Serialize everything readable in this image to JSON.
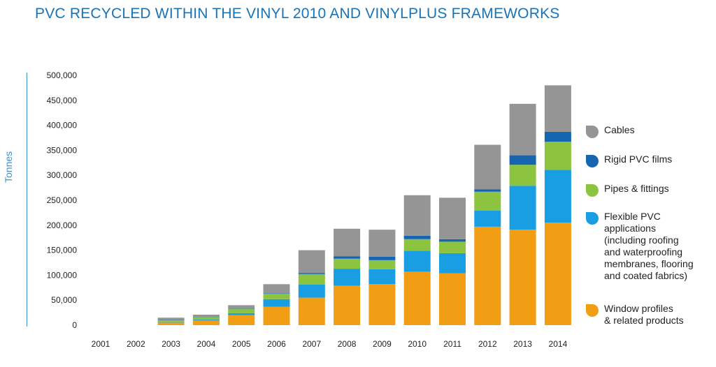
{
  "title": "PVC RECYCLED WITHIN THE VINYL 2010 AND VINYLPLUS FRAMEWORKS",
  "chart_data": {
    "type": "bar",
    "stacked": true,
    "title": "PVC RECYCLED WITHIN THE VINYL 2010 AND VINYLPLUS FRAMEWORKS",
    "xlabel": "",
    "ylabel": "Tonnes",
    "ylim": [
      0,
      500000
    ],
    "yticks": [
      "0",
      "50,000",
      "100,000",
      "150,000",
      "200,000",
      "250,000",
      "300,000",
      "350,000",
      "400,000",
      "450,000",
      "500,000"
    ],
    "grid": false,
    "legend_position": "right",
    "categories": [
      "2001",
      "2002",
      "2003",
      "2004",
      "2005",
      "2006",
      "2007",
      "2008",
      "2009",
      "2010",
      "2011",
      "2012",
      "2013",
      "2014"
    ],
    "series": [
      {
        "name": "Window profiles\n& related products",
        "color": "#f29e14",
        "values": [
          0,
          0,
          5000,
          9000,
          20000,
          37000,
          55000,
          79000,
          82000,
          107000,
          104000,
          197000,
          191000,
          205000
        ]
      },
      {
        "name": "Flexible PVC\napplications\n(including roofing\nand waterproofing\nmembranes, flooring\nand coated fabrics)",
        "color": "#1a9ee3",
        "values": [
          0,
          0,
          1000,
          2000,
          4000,
          15000,
          26000,
          34000,
          30000,
          42000,
          40000,
          32000,
          88000,
          106000
        ]
      },
      {
        "name": "Pipes & fittings",
        "color": "#8dc43f",
        "values": [
          0,
          0,
          4000,
          5000,
          9000,
          11000,
          21000,
          20000,
          18000,
          23000,
          23000,
          38000,
          42000,
          56000
        ]
      },
      {
        "name": "Rigid PVC films",
        "color": "#1565b0",
        "values": [
          0,
          0,
          500,
          500,
          1000,
          1000,
          2000,
          5000,
          7000,
          7000,
          5000,
          5000,
          19000,
          20000
        ]
      },
      {
        "name": "Cables",
        "color": "#959595",
        "values": [
          0,
          0,
          4500,
          4500,
          6000,
          18000,
          46000,
          55000,
          54000,
          81000,
          83000,
          89000,
          103000,
          93000
        ]
      }
    ],
    "legend_order": [
      "Cables",
      "Rigid PVC films",
      "Pipes & fittings",
      "Flexible PVC\napplications\n(including roofing\nand waterproofing\nmembranes, flooring\nand coated fabrics)",
      "Window profiles\n& related products"
    ]
  }
}
